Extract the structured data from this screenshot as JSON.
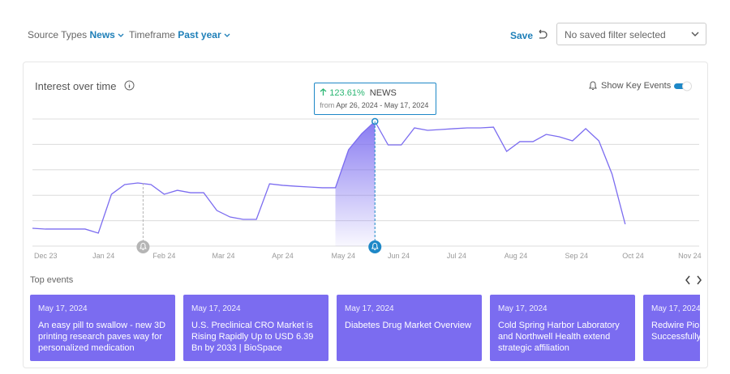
{
  "filters": [
    {
      "label": "Source Types",
      "value": "News"
    },
    {
      "label": "Timeframe",
      "value": "Past year"
    }
  ],
  "save": "Save",
  "saved_filter": "No saved filter selected",
  "chart_data": {
    "type": "line",
    "title": "Interest over time",
    "toggle_label": "Show Key Events",
    "toggle_on": true,
    "xlim": [
      0,
      50
    ],
    "ylim": [
      0,
      100
    ],
    "yticks": [
      0,
      20,
      40,
      60,
      80,
      100
    ],
    "grid": true,
    "xticks": [
      {
        "value": 1,
        "label": "Dec 23"
      },
      {
        "value": 5.4,
        "label": "Jan 24"
      },
      {
        "value": 10,
        "label": "Feb 24"
      },
      {
        "value": 14.5,
        "label": "Mar 24"
      },
      {
        "value": 19,
        "label": "Apr 24"
      },
      {
        "value": 23.6,
        "label": "May 24"
      },
      {
        "value": 27.8,
        "label": "Jun 24"
      },
      {
        "value": 32.2,
        "label": "Jul 24"
      },
      {
        "value": 36.7,
        "label": "Aug 24"
      },
      {
        "value": 41.3,
        "label": "Sep 24"
      },
      {
        "value": 45.6,
        "label": "Oct 24"
      },
      {
        "value": 49.9,
        "label": "Nov 24"
      }
    ],
    "series": [
      {
        "name": "NEWS",
        "color": "#7b6cf0",
        "values": [
          14,
          13.4,
          13.4,
          13.4,
          13.4,
          10.2,
          40.8,
          48.4,
          49.7,
          48.4,
          40.8,
          43.9,
          42,
          42,
          28,
          22.9,
          21,
          21,
          49,
          47.8,
          47.1,
          46.5,
          45.9,
          45.9,
          75.8,
          88.5,
          98.1,
          79.6,
          79.6,
          93,
          91.1,
          91.7,
          92.4,
          93,
          93,
          93.6,
          74.5,
          82.2,
          82.2,
          87.9,
          86,
          82.8,
          92.4,
          82.8,
          56.7,
          17.2
        ]
      }
    ],
    "highlight": [
      23,
      26
    ],
    "key_events": [
      {
        "x": 8.4,
        "color": "#b5b5b5"
      },
      {
        "x": 26,
        "color": "#1e88c7"
      }
    ],
    "tooltip": {
      "change": "123.61%",
      "from": "from",
      "range": "Apr 26, 2024 - May 17, 2024"
    }
  },
  "events": {
    "title": "Top events",
    "items": [
      {
        "date": "May 17, 2024",
        "title": "An easy pill to swallow - new 3D printing research paves way for personalized medication"
      },
      {
        "date": "May 17, 2024",
        "title": "U.S. Preclinical CRO Market is Rising Rapidly Up to USD 6.39 Bn by 2033 | BioSpace"
      },
      {
        "date": "May 17, 2024",
        "title": "Diabetes Drug Market Overview"
      },
      {
        "date": "May 17, 2024",
        "title": "Cold Spring Harbor Laboratory and Northwell Health extend strategic affiliation"
      },
      {
        "date": "May 17, 2024",
        "title": "Redwire Pio Production i Successfully"
      }
    ]
  }
}
